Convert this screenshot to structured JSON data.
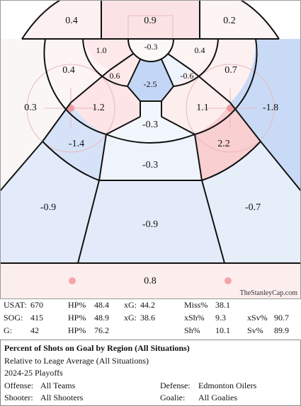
{
  "regions": {
    "top_left": "0.4",
    "top_center": "0.9",
    "top_right": "0.2",
    "crease": "-0.3",
    "inner_top_left": "1.0",
    "inner_top_right": "0.4",
    "inner_mid_left": "0.6",
    "inner_mid_right": "-0.6",
    "slot_top": "-2.5",
    "mid_left": "0.4",
    "mid_right": "0.7",
    "circle_left": "1.2",
    "circle_right": "1.1",
    "far_left": "0.3",
    "far_right": "-1.8",
    "slot_upper": "-0.3",
    "slot_lower": "-0.3",
    "low_left": "-1.4",
    "low_right": "2.2",
    "point_left": "-0.9",
    "point_center": "-0.9",
    "point_right": "-0.7",
    "neutral": "0.8"
  },
  "watermark": "TheStanleyCap.com",
  "stats": {
    "usat_label": "USAT:",
    "usat": "670",
    "sog_label": "SOG:",
    "sog": "415",
    "g_label": "G:",
    "g": "42",
    "hp1_label": "HP%",
    "hp1": "48.4",
    "hp2_label": "HP%",
    "hp2": "48.9",
    "hp3_label": "HP%",
    "hp3": "76.2",
    "xg1_label": "xG:",
    "xg1": "44.2",
    "xg2_label": "xG:",
    "xg2": "38.6",
    "miss_label": "Miss%",
    "miss": "38.1",
    "xsh_label": "xSh%",
    "xsh": "9.3",
    "sh_label": "Sh%",
    "sh": "10.1",
    "xsv_label": "xSv%",
    "xsv": "90.7",
    "sv_label": "Sv%",
    "sv": "89.9"
  },
  "legend": {
    "title": "Percent of Shots on Goal by Region (All Situations)",
    "subtitle": "Relative to Leage Average (All Situations)",
    "season": "2024-25 Playoffs",
    "offense_label": "Offense:",
    "offense": "All Teams",
    "defense_label": "Defense:",
    "defense": "Edmonton Oilers",
    "shooter_label": "Shooter:",
    "shooter": "All Shooters",
    "goalie_label": "Goalie:",
    "goalie": "All Goalies"
  },
  "colors": {
    "pos_strong": "#f9cfd2",
    "pos_mild": "#fde9ea",
    "neg_strong": "#c4d6f5",
    "neg_mild": "#e3ebfa",
    "neg_light": "#eef3fc",
    "lines": "#111111"
  }
}
